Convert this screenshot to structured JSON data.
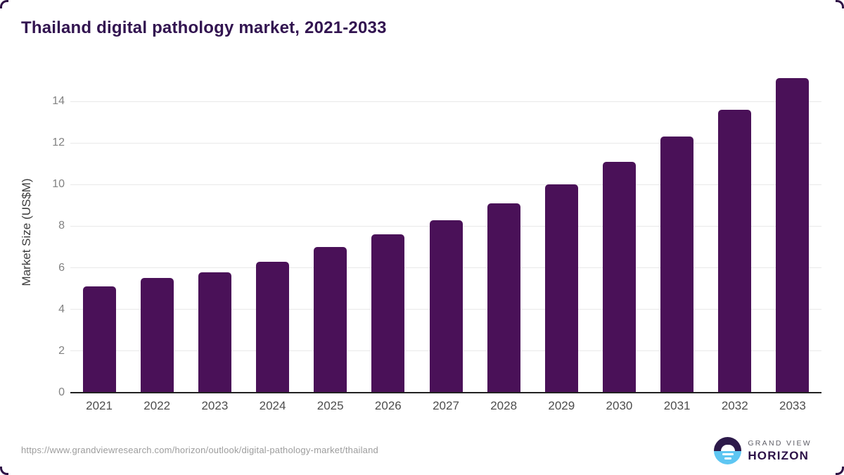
{
  "header": {
    "title": "Thailand digital pathology market, 2021-2033"
  },
  "footer": {
    "source_url": "https://www.grandviewresearch.com/horizon/outlook/digital-pathology-market/thailand",
    "logo": {
      "line1": "GRAND VIEW",
      "line2": "HORIZON"
    }
  },
  "colors": {
    "bar": "#4a1158",
    "title": "#321450",
    "gridline": "#e9e9e9",
    "axis": "#222222",
    "y_tick_label": "#828282",
    "x_tick_label": "#4d4d4d",
    "logo_purple": "#2d1a4a",
    "logo_blue": "#5ec6f2"
  },
  "chart_data": {
    "type": "bar",
    "title": "Thailand digital pathology market, 2021-2033",
    "xlabel": "",
    "ylabel": "Market Size (US$M)",
    "categories": [
      "2021",
      "2022",
      "2023",
      "2024",
      "2025",
      "2026",
      "2027",
      "2028",
      "2029",
      "2030",
      "2031",
      "2032",
      "2033"
    ],
    "values": [
      5.1,
      5.5,
      5.8,
      6.3,
      7.0,
      7.6,
      8.3,
      9.1,
      10.0,
      11.1,
      12.3,
      13.6,
      15.1
    ],
    "ylim": [
      0,
      14
    ],
    "yticks": [
      0,
      2,
      4,
      6,
      8,
      10,
      12,
      14
    ],
    "grid": true,
    "legend": false,
    "bar_color": "#4a1158"
  }
}
